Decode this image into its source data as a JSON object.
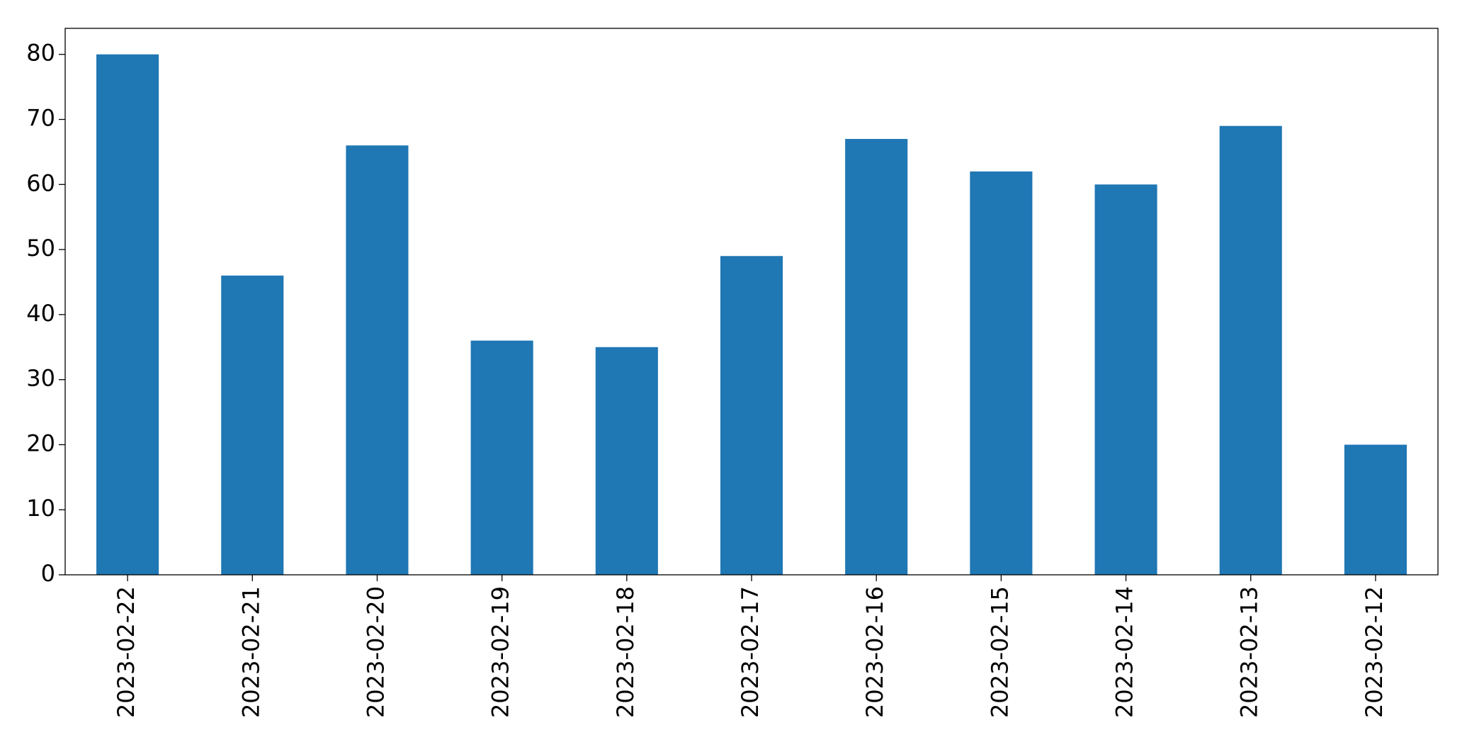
{
  "chart_data": {
    "type": "bar",
    "categories": [
      "2023-02-22",
      "2023-02-21",
      "2023-02-20",
      "2023-02-19",
      "2023-02-18",
      "2023-02-17",
      "2023-02-16",
      "2023-02-15",
      "2023-02-14",
      "2023-02-13",
      "2023-02-12"
    ],
    "values": [
      80,
      46,
      66,
      36,
      35,
      49,
      67,
      62,
      60,
      69,
      20
    ],
    "color": "#1f77b4",
    "ylim": [
      0,
      84
    ],
    "yticks": [
      0,
      10,
      20,
      30,
      40,
      50,
      60,
      70,
      80
    ],
    "grid": false
  }
}
